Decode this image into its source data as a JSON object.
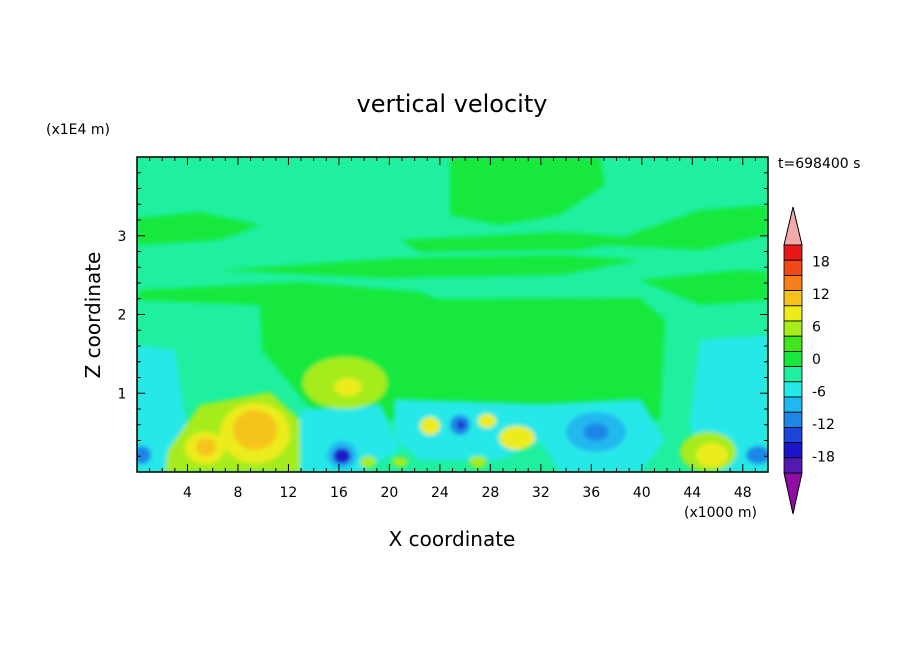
{
  "chart_data": {
    "type": "heatmap",
    "title": "vertical velocity",
    "time_label": "t=698400 s",
    "xlabel": "X coordinate",
    "ylabel": "Z coordinate",
    "x_unit": "(x1000 m)",
    "y_unit": "(x1E4 m)",
    "xlim": [
      0,
      50
    ],
    "ylim": [
      0,
      4
    ],
    "x_ticks": [
      4,
      8,
      12,
      16,
      20,
      24,
      28,
      32,
      36,
      40,
      44,
      48
    ],
    "y_ticks": [
      1,
      2,
      3
    ],
    "colorbar": {
      "levels": [
        -21,
        -18,
        -15,
        -12,
        -9,
        -6,
        -3,
        0,
        3,
        6,
        9,
        12,
        15,
        18,
        21
      ],
      "tick_labels": [
        "18",
        "12",
        "6",
        "0",
        "-6",
        "-12",
        "-18"
      ],
      "tick_values": [
        18,
        12,
        6,
        0,
        -6,
        -12,
        -18
      ],
      "colors": [
        "#8e0ea3",
        "#5519b3",
        "#1c14c8",
        "#1b46d9",
        "#1f86e8",
        "#20b8f0",
        "#25e8e8",
        "#1ef0a0",
        "#18e83c",
        "#3fe61a",
        "#a6ec1a",
        "#ecec1a",
        "#f6c31a",
        "#f67e1a",
        "#f04818",
        "#e81818",
        "#f2aaaa"
      ]
    }
  }
}
